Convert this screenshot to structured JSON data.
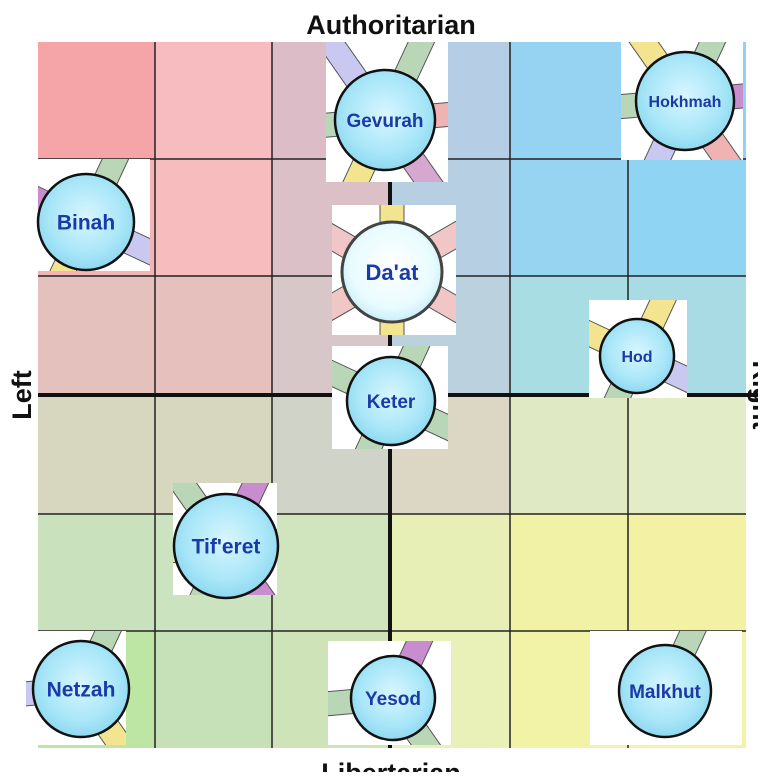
{
  "axes": {
    "top": "Authoritarian",
    "bottom": "Libertarian",
    "left": "Left",
    "right": "Right"
  },
  "nodes": [
    {
      "id": "gevurah",
      "label": "Gevurah"
    },
    {
      "id": "hokhmah",
      "label": "Hokhmah"
    },
    {
      "id": "binah",
      "label": "Binah"
    },
    {
      "id": "daat",
      "label": "Da'at"
    },
    {
      "id": "hod",
      "label": "Hod"
    },
    {
      "id": "keter",
      "label": "Keter"
    },
    {
      "id": "tiferet",
      "label": "Tif'eret"
    },
    {
      "id": "netzah",
      "label": "Netzah"
    },
    {
      "id": "yesod",
      "label": "Yesod"
    },
    {
      "id": "malkhut",
      "label": "Malkhut"
    }
  ],
  "colors": {
    "node_fill": "#a8e6f8",
    "node_label": "#1a3aa8",
    "grid_line": "#222222",
    "axis_line": "#111111"
  }
}
